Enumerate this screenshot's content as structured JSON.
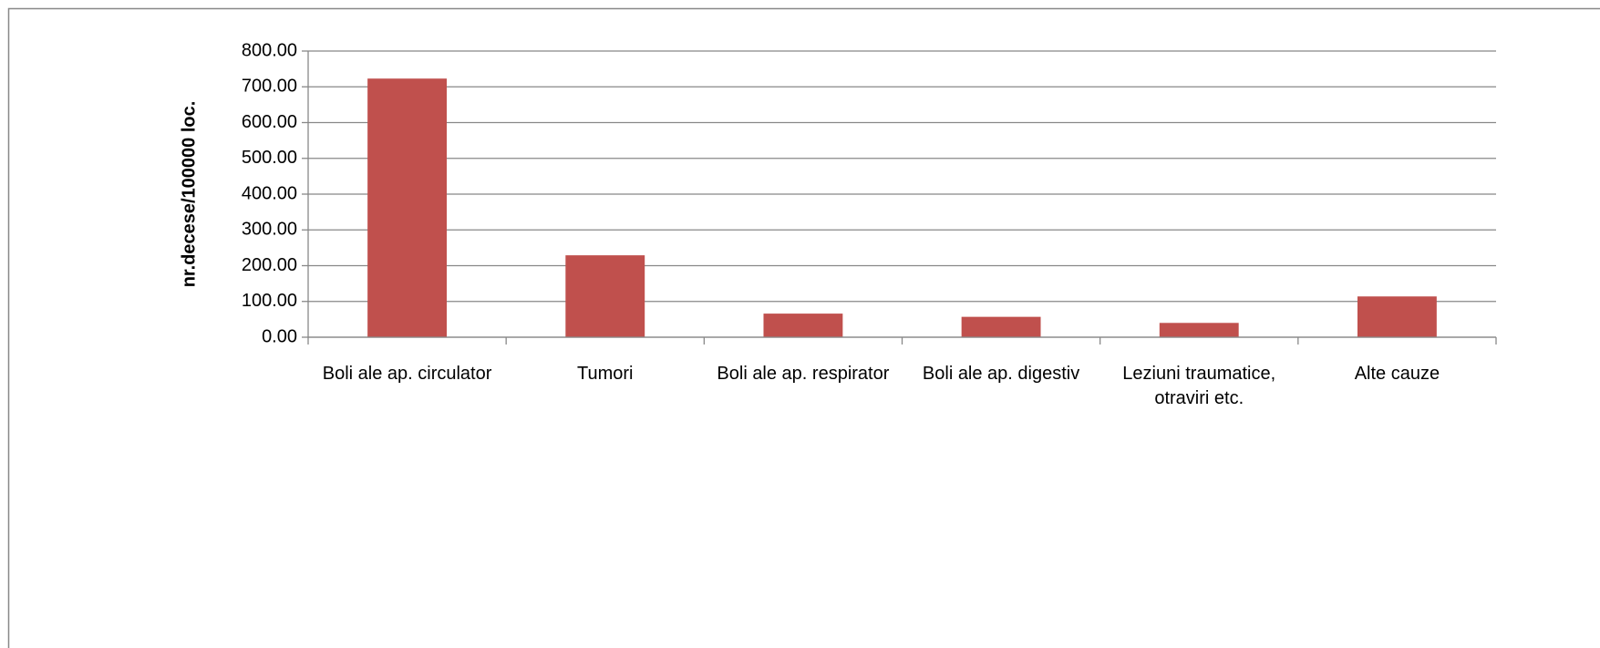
{
  "chart_data": {
    "type": "bar",
    "ylabel": "nr.decese/100000 loc.",
    "categories": [
      "Boli ale ap. circulator",
      "Tumori",
      "Boli ale ap. respirator",
      "Boli ale ap. digestiv",
      "Leziuni traumatice, otraviri etc.",
      "Alte cauze"
    ],
    "values": [
      723,
      229,
      66,
      57,
      40,
      114
    ],
    "color": "#c0504d",
    "ylim": [
      0,
      800
    ],
    "yticks": [
      {
        "value": 0,
        "label": "0.00"
      },
      {
        "value": 100,
        "label": "100.00"
      },
      {
        "value": 200,
        "label": "200.00"
      },
      {
        "value": 300,
        "label": "300.00"
      },
      {
        "value": 400,
        "label": "400.00"
      },
      {
        "value": 500,
        "label": "500.00"
      },
      {
        "value": 600,
        "label": "600.00"
      },
      {
        "value": 700,
        "label": "700.00"
      },
      {
        "value": 800,
        "label": "800.00"
      }
    ],
    "grid": true
  }
}
